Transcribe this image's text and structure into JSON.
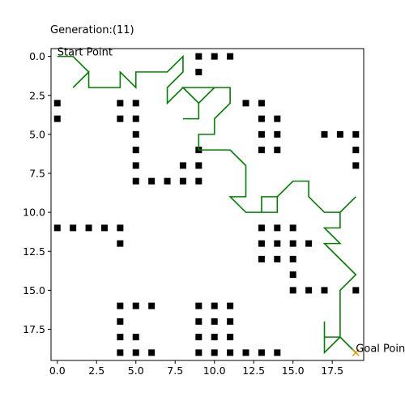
{
  "chart_data": {
    "type": "scatter",
    "title": "Generation:(11)",
    "xlabel": "",
    "ylabel": "",
    "xlim": [
      -0.4,
      19.5
    ],
    "ylim": [
      19.5,
      -0.5
    ],
    "y_inverted": true,
    "grid": false,
    "xticks": [
      0.0,
      2.5,
      5.0,
      7.5,
      10.0,
      12.5,
      15.0,
      17.5
    ],
    "xtick_labels": [
      "0.0",
      "2.5",
      "5.0",
      "7.5",
      "10.0",
      "12.5",
      "15.0",
      "17.5"
    ],
    "yticks": [
      0.0,
      2.5,
      5.0,
      7.5,
      10.0,
      12.5,
      15.0,
      17.5
    ],
    "ytick_labels": [
      "0.0",
      "2.5",
      "5.0",
      "7.5",
      "10.0",
      "12.5",
      "15.0",
      "17.5"
    ],
    "obstacles": {
      "color": "#000000",
      "points": [
        [
          9,
          0
        ],
        [
          10,
          0
        ],
        [
          11,
          0
        ],
        [
          9,
          1
        ],
        [
          0,
          3
        ],
        [
          4,
          3
        ],
        [
          5,
          3
        ],
        [
          12,
          3
        ],
        [
          13,
          3
        ],
        [
          0,
          4
        ],
        [
          4,
          4
        ],
        [
          5,
          4
        ],
        [
          13,
          4
        ],
        [
          14,
          4
        ],
        [
          5,
          5
        ],
        [
          13,
          5
        ],
        [
          14,
          5
        ],
        [
          17,
          5
        ],
        [
          18,
          5
        ],
        [
          19,
          5
        ],
        [
          5,
          6
        ],
        [
          9,
          6
        ],
        [
          13,
          6
        ],
        [
          14,
          6
        ],
        [
          19,
          6
        ],
        [
          5,
          7
        ],
        [
          8,
          7
        ],
        [
          9,
          7
        ],
        [
          19,
          7
        ],
        [
          5,
          8
        ],
        [
          6,
          8
        ],
        [
          7,
          8
        ],
        [
          8,
          8
        ],
        [
          9,
          8
        ],
        [
          0,
          11
        ],
        [
          1,
          11
        ],
        [
          2,
          11
        ],
        [
          3,
          11
        ],
        [
          4,
          11
        ],
        [
          13,
          11
        ],
        [
          14,
          11
        ],
        [
          15,
          11
        ],
        [
          4,
          12
        ],
        [
          13,
          12
        ],
        [
          14,
          12
        ],
        [
          15,
          12
        ],
        [
          16,
          12
        ],
        [
          13,
          13
        ],
        [
          14,
          13
        ],
        [
          15,
          13
        ],
        [
          15,
          14
        ],
        [
          15,
          15
        ],
        [
          16,
          15
        ],
        [
          17,
          15
        ],
        [
          19,
          15
        ],
        [
          4,
          16
        ],
        [
          5,
          16
        ],
        [
          6,
          16
        ],
        [
          9,
          16
        ],
        [
          10,
          16
        ],
        [
          11,
          16
        ],
        [
          4,
          17
        ],
        [
          9,
          17
        ],
        [
          10,
          17
        ],
        [
          11,
          17
        ],
        [
          4,
          18
        ],
        [
          5,
          18
        ],
        [
          9,
          18
        ],
        [
          10,
          18
        ],
        [
          11,
          18
        ],
        [
          4,
          19
        ],
        [
          5,
          19
        ],
        [
          6,
          19
        ],
        [
          9,
          19
        ],
        [
          10,
          19
        ],
        [
          11,
          19
        ],
        [
          12,
          19
        ],
        [
          13,
          19
        ],
        [
          14,
          19
        ]
      ]
    },
    "path": {
      "color": "#008000",
      "points": [
        [
          0,
          0
        ],
        [
          1,
          0
        ],
        [
          2,
          1
        ],
        [
          1,
          2
        ],
        [
          2,
          1
        ],
        [
          2,
          2
        ],
        [
          3,
          2
        ],
        [
          4,
          2
        ],
        [
          4,
          1
        ],
        [
          5,
          2
        ],
        [
          5,
          1
        ],
        [
          6,
          1
        ],
        [
          7,
          1
        ],
        [
          8,
          0
        ],
        [
          8,
          1
        ],
        [
          7,
          2
        ],
        [
          7,
          3
        ],
        [
          8,
          2
        ],
        [
          9,
          3
        ],
        [
          9,
          4
        ],
        [
          8,
          4
        ],
        [
          9,
          4
        ],
        [
          9,
          3
        ],
        [
          10,
          2
        ],
        [
          9,
          3
        ],
        [
          8,
          2
        ],
        [
          9,
          2
        ],
        [
          10,
          2
        ],
        [
          11,
          2
        ],
        [
          11,
          3
        ],
        [
          10,
          4
        ],
        [
          10,
          5
        ],
        [
          9,
          5
        ],
        [
          9,
          6
        ],
        [
          10,
          6
        ],
        [
          11,
          6
        ],
        [
          12,
          7
        ],
        [
          12,
          8
        ],
        [
          12,
          9
        ],
        [
          11,
          9
        ],
        [
          12,
          10
        ],
        [
          13,
          10
        ],
        [
          13,
          9
        ],
        [
          14,
          9
        ],
        [
          14,
          10
        ],
        [
          13,
          10
        ],
        [
          14,
          10
        ],
        [
          14,
          9
        ],
        [
          15,
          8
        ],
        [
          16,
          8
        ],
        [
          16,
          9
        ],
        [
          17,
          10
        ],
        [
          18,
          10
        ],
        [
          19,
          9
        ],
        [
          18,
          10
        ],
        [
          18,
          11
        ],
        [
          17,
          11
        ],
        [
          18,
          12
        ],
        [
          17,
          12
        ],
        [
          19,
          14
        ],
        [
          18,
          15
        ],
        [
          18,
          16
        ],
        [
          18,
          17
        ],
        [
          18,
          18
        ],
        [
          17,
          18
        ],
        [
          17,
          17
        ],
        [
          17,
          18
        ],
        [
          17,
          19
        ],
        [
          18,
          18
        ],
        [
          19,
          19
        ]
      ]
    },
    "start": {
      "point": [
        0,
        0
      ],
      "label": "Start Point"
    },
    "goal": {
      "point": [
        19,
        19
      ],
      "label": "Goal Point",
      "marker": "x",
      "color": "#ff8c00"
    }
  }
}
